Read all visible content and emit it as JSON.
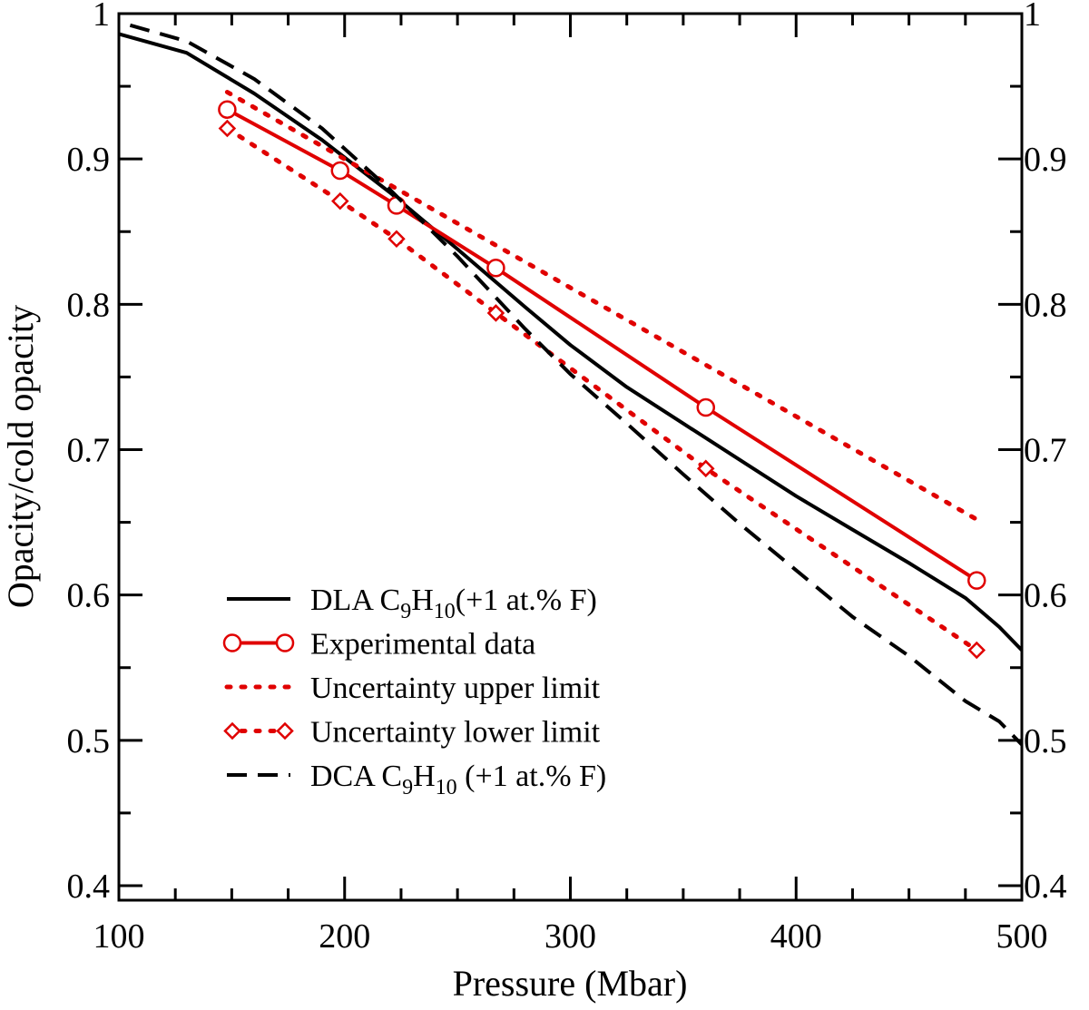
{
  "chart_data": {
    "type": "line",
    "xlabel": "Pressure (Mbar)",
    "ylabel": "Opacity/cold opacity",
    "xlim": [
      100,
      500
    ],
    "ylim": [
      0.39,
      1.0
    ],
    "x_ticks": [
      {
        "v": 100,
        "label": "100"
      },
      {
        "v": 200,
        "label": "200"
      },
      {
        "v": 300,
        "label": "300"
      },
      {
        "v": 400,
        "label": "400"
      },
      {
        "v": 500,
        "label": "500"
      }
    ],
    "y_ticks": [
      {
        "v": 0.4,
        "label": "0.4"
      },
      {
        "v": 0.5,
        "label": "0.5"
      },
      {
        "v": 0.6,
        "label": "0.6"
      },
      {
        "v": 0.7,
        "label": "0.7"
      },
      {
        "v": 0.8,
        "label": "0.8"
      },
      {
        "v": 0.9,
        "label": "0.9"
      },
      {
        "v": 1.0,
        "label": "1"
      }
    ],
    "x_minor_step": 25,
    "y_minor_step": 0.05,
    "series": [
      {
        "id": "dla",
        "name": "DLA C9H10(+1 at.% F)",
        "legend": {
          "pre": "DLA C",
          "sub1": "9",
          "mid": "H",
          "sub2": "10",
          "post": "(+1 at.% F)"
        },
        "color": "#000000",
        "style": "solid",
        "marker": "none",
        "x": [
          100,
          130,
          160,
          190,
          220,
          250,
          280,
          300,
          325,
          350,
          375,
          400,
          425,
          450,
          475,
          490,
          500
        ],
        "y": [
          0.986,
          0.973,
          0.945,
          0.913,
          0.877,
          0.838,
          0.798,
          0.772,
          0.743,
          0.718,
          0.693,
          0.668,
          0.645,
          0.622,
          0.598,
          0.578,
          0.562
        ]
      },
      {
        "id": "experimental",
        "name": "Experimental data",
        "legend": {
          "pre": "Experimental data"
        },
        "color": "#e00000",
        "style": "solid",
        "marker": "circle",
        "x": [
          148,
          198,
          223,
          267,
          360,
          480
        ],
        "y": [
          0.934,
          0.892,
          0.868,
          0.825,
          0.729,
          0.61
        ]
      },
      {
        "id": "upper",
        "name": "Uncertainty upper limit",
        "legend": {
          "pre": "Uncertainty upper limit"
        },
        "color": "#e00000",
        "style": "dotted",
        "marker": "none",
        "x": [
          148,
          480
        ],
        "y": [
          0.946,
          0.652
        ]
      },
      {
        "id": "lower",
        "name": "Uncertainty lower limit",
        "legend": {
          "pre": "Uncertainty lower limit"
        },
        "color": "#e00000",
        "style": "dotted",
        "marker": "diamond",
        "x": [
          148,
          198,
          223,
          267,
          360,
          480
        ],
        "y": [
          0.921,
          0.871,
          0.845,
          0.794,
          0.687,
          0.562
        ]
      },
      {
        "id": "dca",
        "name": "DCA C9H10 (+1 at.% F)",
        "legend": {
          "pre": "DCA C",
          "sub1": "9",
          "mid": "H",
          "sub2": "10",
          "post": " (+1 at.% F)"
        },
        "color": "#000000",
        "style": "dashed",
        "marker": "none",
        "x": [
          105,
          130,
          160,
          190,
          220,
          250,
          280,
          300,
          325,
          350,
          375,
          400,
          425,
          450,
          475,
          490,
          500
        ],
        "y": [
          0.992,
          0.981,
          0.955,
          0.921,
          0.879,
          0.833,
          0.783,
          0.752,
          0.718,
          0.683,
          0.649,
          0.617,
          0.585,
          0.558,
          0.527,
          0.513,
          0.497
        ]
      }
    ],
    "legend_position": "bottom-left"
  }
}
